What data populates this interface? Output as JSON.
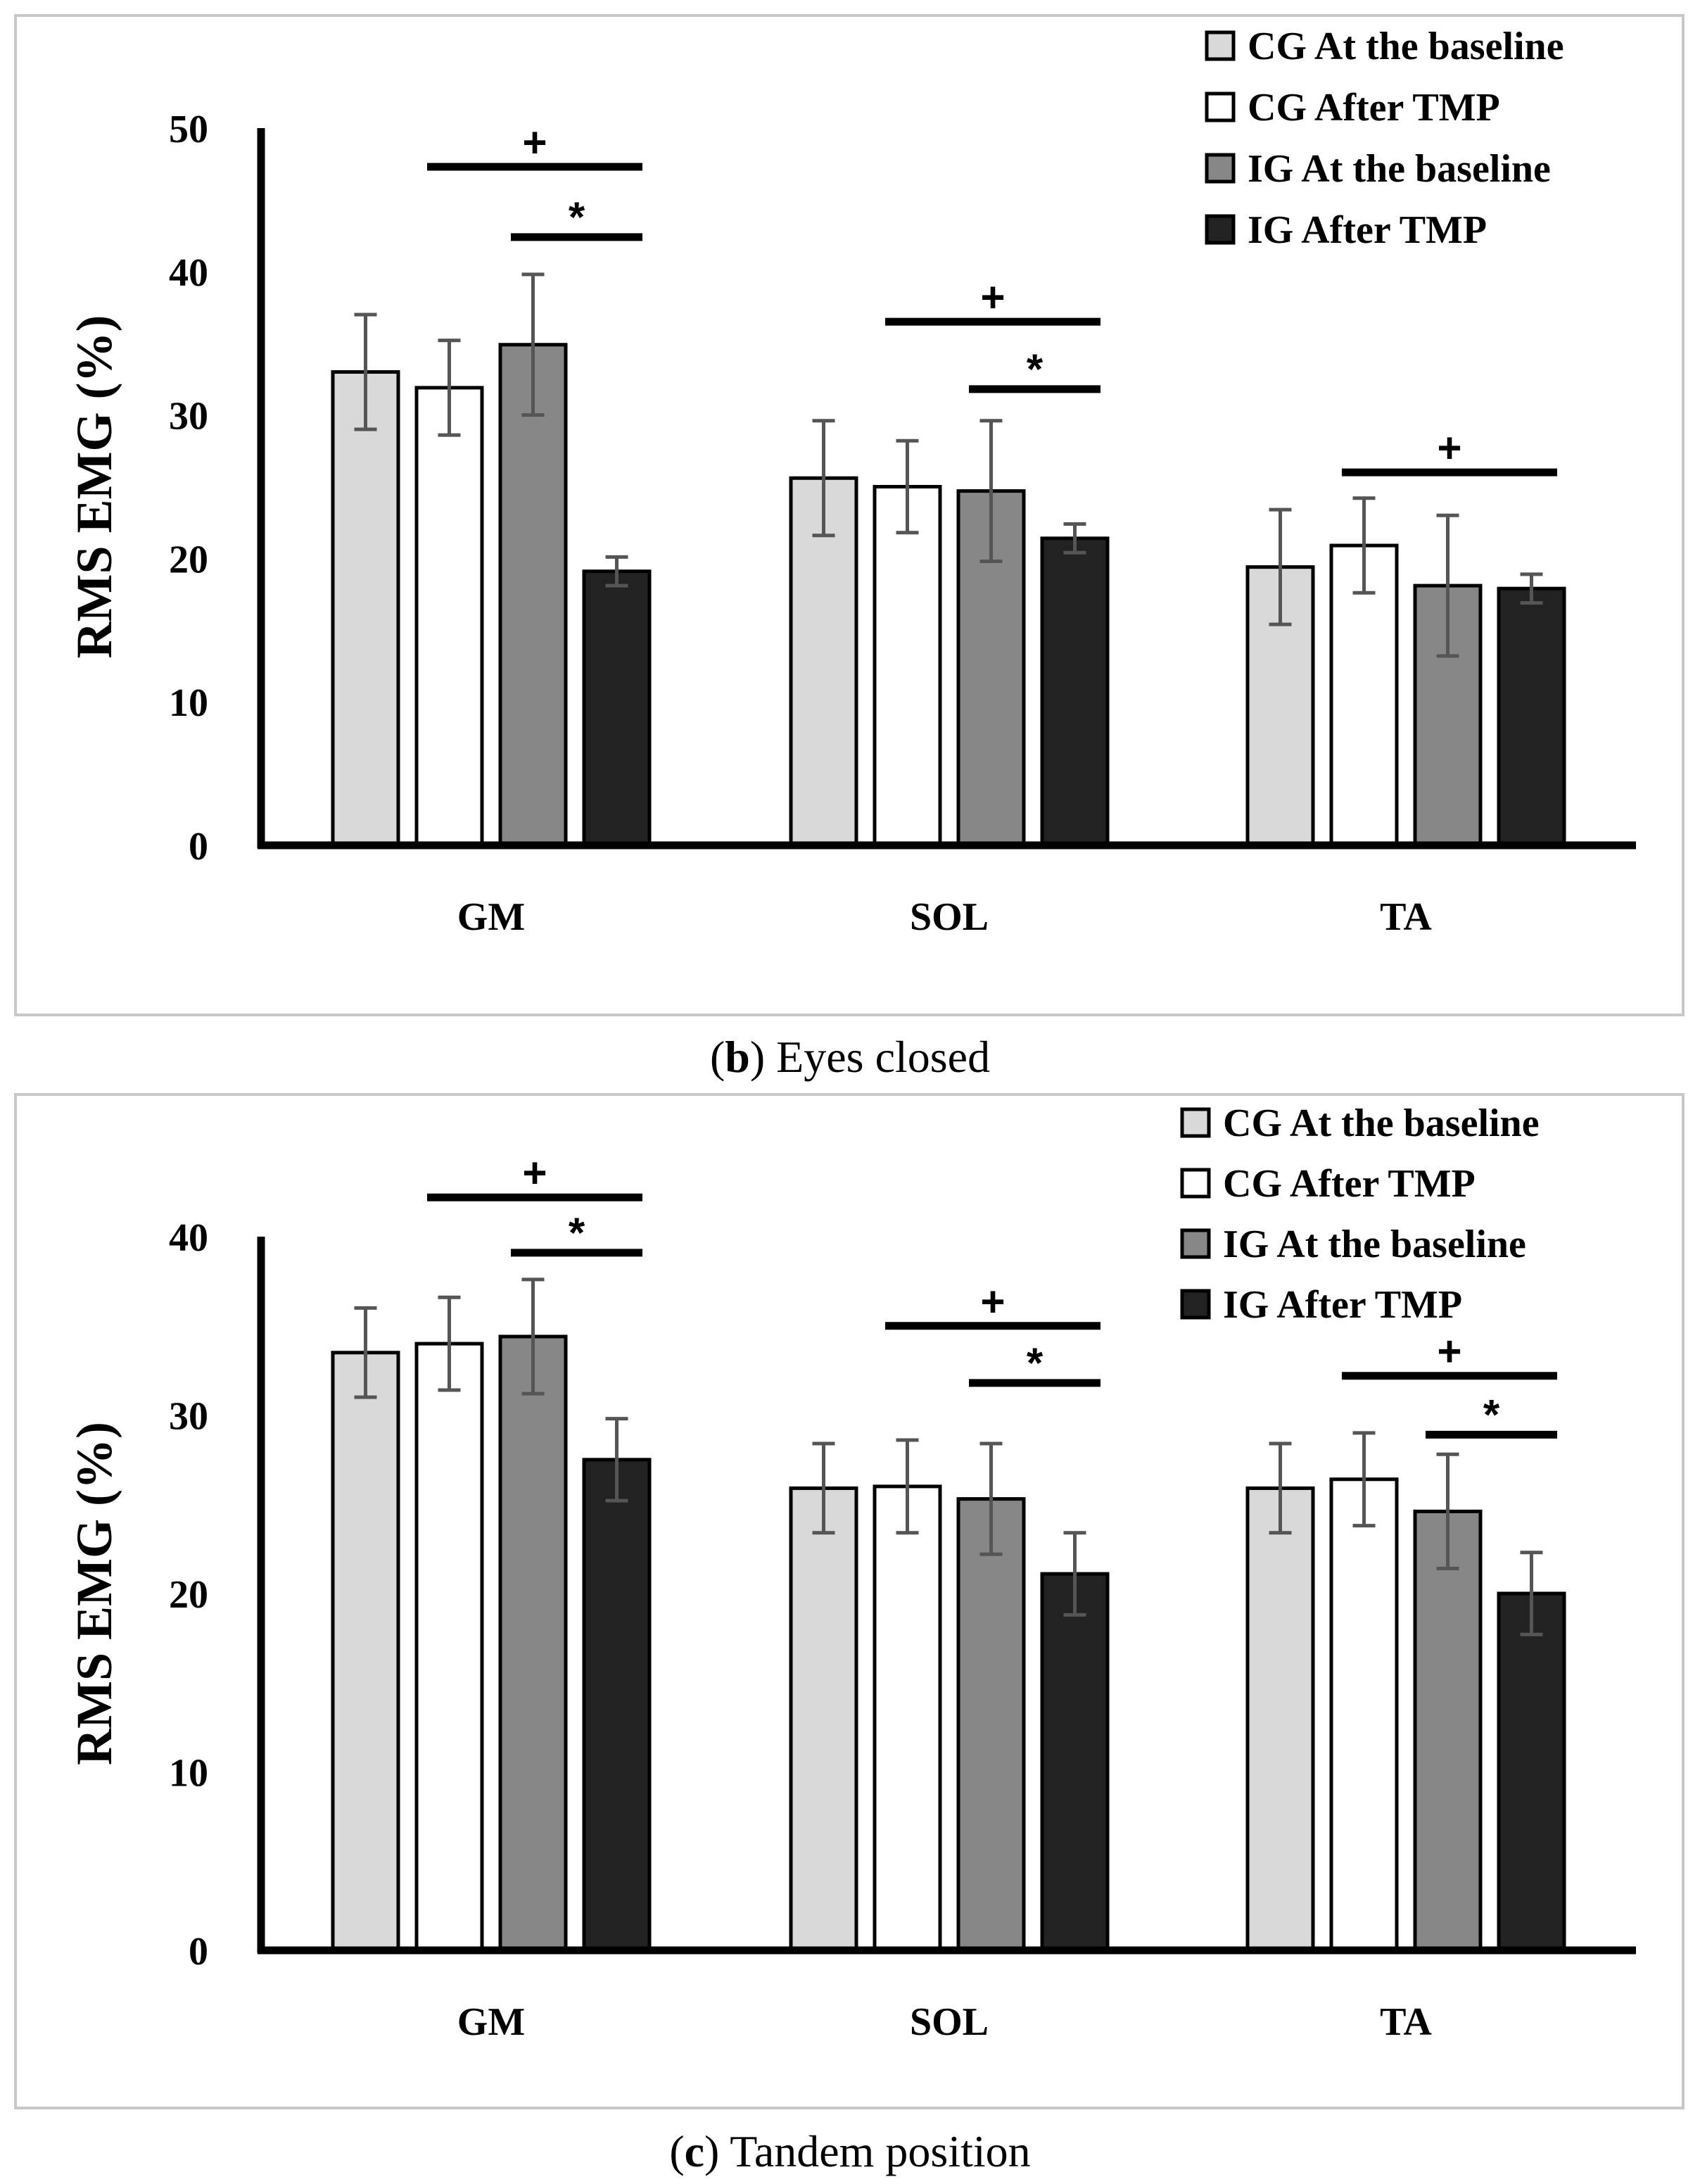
{
  "colors": {
    "cg_baseline": "#d9d9d9",
    "cg_after": "#ffffff",
    "ig_baseline": "#878787",
    "ig_after": "#222222",
    "error_bar": "#555555",
    "frame": "#c8c8c8"
  },
  "chart_data": [
    {
      "type": "bar",
      "panel_letter": "b",
      "caption": "Eyes closed",
      "ylabel": "RMS EMG (%)",
      "xlabel": "",
      "ylim": [
        0,
        50
      ],
      "yticks": [
        0,
        10,
        20,
        30,
        40,
        50
      ],
      "categories": [
        "GM",
        "SOL",
        "TA"
      ],
      "legend_position": "top-right",
      "series": [
        {
          "name": "CG At the baseline",
          "color_key": "cg_baseline",
          "values": [
            33.0,
            25.6,
            19.4
          ],
          "errors": [
            4.0,
            4.0,
            4.0
          ]
        },
        {
          "name": "CG After TMP",
          "color_key": "cg_after",
          "values": [
            31.9,
            25.0,
            20.9
          ],
          "errors": [
            3.3,
            3.2,
            3.3
          ]
        },
        {
          "name": "IG At the baseline",
          "color_key": "ig_baseline",
          "values": [
            34.9,
            24.7,
            18.1
          ],
          "errors": [
            4.9,
            4.9,
            4.9
          ]
        },
        {
          "name": "IG After TMP",
          "color_key": "ig_after",
          "values": [
            19.1,
            21.4,
            17.9
          ],
          "errors": [
            1.0,
            1.0,
            1.0
          ]
        }
      ],
      "significance": [
        {
          "symbol": "+",
          "category": 0,
          "from_series": 1,
          "to_series": 3,
          "y": 47.3
        },
        {
          "symbol": "*",
          "category": 0,
          "from_series": 2,
          "to_series": 3,
          "y": 42.4
        },
        {
          "symbol": "+",
          "category": 1,
          "from_series": 1,
          "to_series": 3,
          "y": 36.5
        },
        {
          "symbol": "*",
          "category": 1,
          "from_series": 2,
          "to_series": 3,
          "y": 31.8
        },
        {
          "symbol": "+",
          "category": 2,
          "from_series": 1,
          "to_series": 3,
          "y": 26.0
        }
      ]
    },
    {
      "type": "bar",
      "panel_letter": "c",
      "caption": "Tandem position",
      "ylabel": "RMS EMG (%)",
      "xlabel": "",
      "ylim": [
        0,
        40
      ],
      "yticks": [
        0,
        10,
        20,
        30,
        40
      ],
      "categories": [
        "GM",
        "SOL",
        "TA"
      ],
      "legend_position": "top-right",
      "series": [
        {
          "name": "CG At the baseline",
          "color_key": "cg_baseline",
          "values": [
            33.5,
            25.9,
            25.9
          ],
          "errors": [
            2.5,
            2.5,
            2.5
          ]
        },
        {
          "name": "CG After TMP",
          "color_key": "cg_after",
          "values": [
            34.0,
            26.0,
            26.4
          ],
          "errors": [
            2.6,
            2.6,
            2.6
          ]
        },
        {
          "name": "IG At the baseline",
          "color_key": "ig_baseline",
          "values": [
            34.4,
            25.3,
            24.6
          ],
          "errors": [
            3.2,
            3.1,
            3.2
          ]
        },
        {
          "name": "IG After TMP",
          "color_key": "ig_after",
          "values": [
            27.5,
            21.1,
            20.0
          ],
          "errors": [
            2.3,
            2.3,
            2.3
          ]
        }
      ],
      "significance": [
        {
          "symbol": "+",
          "category": 0,
          "from_series": 1,
          "to_series": 3,
          "y": 42.2
        },
        {
          "symbol": "*",
          "category": 0,
          "from_series": 2,
          "to_series": 3,
          "y": 39.1
        },
        {
          "symbol": "+",
          "category": 1,
          "from_series": 1,
          "to_series": 3,
          "y": 35.0
        },
        {
          "symbol": "*",
          "category": 1,
          "from_series": 2,
          "to_series": 3,
          "y": 31.8
        },
        {
          "symbol": "+",
          "category": 2,
          "from_series": 1,
          "to_series": 3,
          "y": 32.2
        },
        {
          "symbol": "*",
          "category": 2,
          "from_series": 2,
          "to_series": 3,
          "y": 28.9
        }
      ]
    }
  ]
}
